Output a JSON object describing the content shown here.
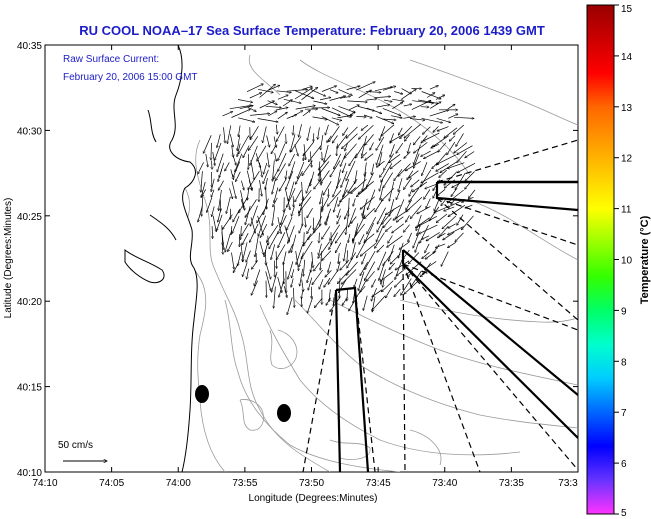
{
  "title": "RU COOL  NOAA–17  Sea Surface Temperature:  February 20, 2006 1439 GMT",
  "inset": {
    "line1": "Raw Surface Current:",
    "line2": "February 20, 2006 15:00 GMT"
  },
  "axes": {
    "xlabel": "Longitude (Degrees:Minutes)",
    "ylabel": "Latitude (Degrees:Minutes)",
    "x_ticks": [
      "74:10",
      "74:05",
      "74:00",
      "73:55",
      "73:50",
      "73:45",
      "73:40",
      "73:35",
      "73:3"
    ],
    "y_ticks": [
      "40:35",
      "40:30",
      "40:25",
      "40:20",
      "40:15",
      "40:10"
    ]
  },
  "colorbar": {
    "label": "Temperature (°C)",
    "ticks": [
      "15",
      "14",
      "13",
      "12",
      "11",
      "10",
      "9",
      "8",
      "7",
      "6",
      "5"
    ],
    "colors": [
      "#ff33ff",
      "#6633ff",
      "#0000ff",
      "#0066ff",
      "#00ccff",
      "#00ffcc",
      "#00ff66",
      "#33ff00",
      "#99ff00",
      "#ffff00",
      "#ffcc00",
      "#ff9900",
      "#ff6600",
      "#ff0000",
      "#cc0000",
      "#990000"
    ]
  },
  "scale_bar": {
    "label": "50 cm/s"
  },
  "colors": {
    "text_blue": "#1c1cc8",
    "land": "#ffffff",
    "contour": "#9a9a9a",
    "arrow": "#000000"
  }
}
